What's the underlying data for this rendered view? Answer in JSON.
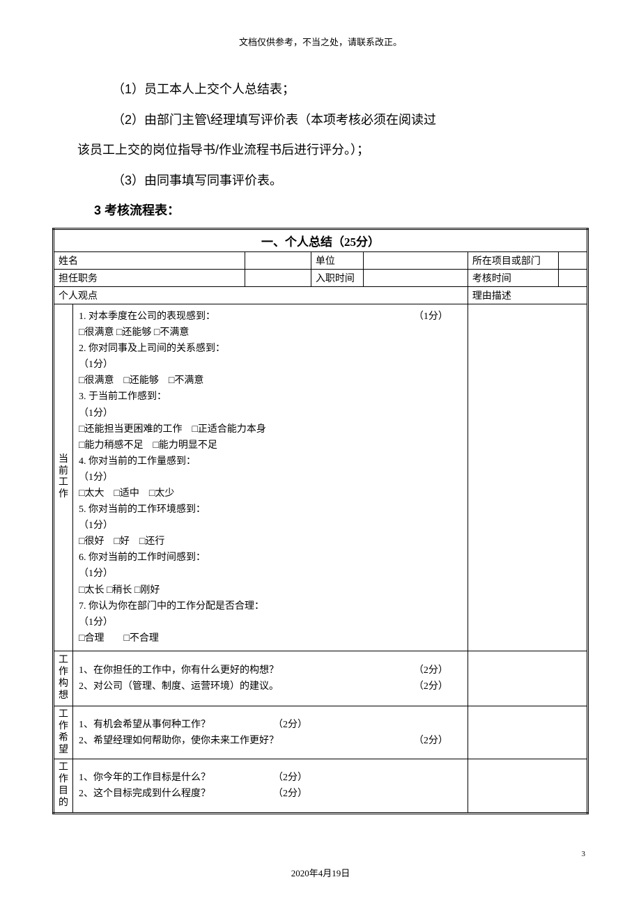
{
  "header_note": "文档仅供参考，不当之处，请联系改正。",
  "body": {
    "line1": "（1）员工本人上交个人总结表；",
    "line2": "（2）由部门主管\\经理填写评价表（本项考核必须在阅读过",
    "line2b": "该员工上交的岗位指导书/作业流程书后进行评分。）；",
    "line3": "（3）由同事填写同事评价表。",
    "section": "3 考核流程表："
  },
  "table": {
    "title": "一、个人总结（25分）",
    "info_row1": {
      "c1": "姓名",
      "c2": "",
      "c3": "单位",
      "c4": "",
      "c5": "所在项目或部门",
      "c6": ""
    },
    "info_row2": {
      "c1": "担任职务",
      "c2": "",
      "c3": "入职时间",
      "c4": "",
      "c5": "考核时间",
      "c6": ""
    },
    "info_row3": {
      "c1": "个人观点",
      "c2": "理由描述"
    },
    "section1": {
      "label": "当前工作",
      "q1": "1. 对本季度在公司的表现感到：",
      "q1pts": "（1分）",
      "q1opts": "□很满意 □还能够 □不满意",
      "q2": "2. 你对同事及上司间的关系感到：",
      "q2pts": "（1分）",
      "q2opts": "□很满意　□还能够　□不满意",
      "q3": "3. 于当前工作感到：",
      "q3pts": "（1分）",
      "q3opts1": "□还能担当更困难的工作　□正适合能力本身",
      "q3opts2": "□能力稍感不足　□能力明显不足",
      "q4": "4. 你对当前的工作量感到：",
      "q4pts": "（1分）",
      "q4opts": "□太大　□适中　□太少",
      "q5": "5. 你对当前的工作环境感到：",
      "q5pts": "（1分）",
      "q5opts": "□很好　□好　□还行",
      "q6": "6. 你对当前的工作时间感到：",
      "q6pts": "（1分）",
      "q6opts": "□太长 □稍长 □刚好",
      "q7": "7. 你认为你在部门中的工作分配是否合理：",
      "q7pts": "（1分）",
      "q7opts": "□合理　　□不合理"
    },
    "section2": {
      "label": "工作构想",
      "q1": "1、在你担任的工作中，你有什么更好的构想？",
      "q1pts": "（2分）",
      "q2": "2、对公司（管理、制度、运营环境）的建议。",
      "q2pts": "（2分）"
    },
    "section3": {
      "label": "工作希望",
      "q1": "1、有机会希望从事何种工作？",
      "q1pts": "（2分）",
      "q2": "2、希望经理如何帮助你，使你未来工作更好？",
      "q2pts": "（2分）"
    },
    "section4": {
      "label": "工作目的",
      "q1": "1、你今年的工作目标是什么？",
      "q1pts": "（2分）",
      "q2": "2、这个目标完成到什么程度？",
      "q2pts": "（2分）"
    }
  },
  "page_number": "3",
  "footer_date": "2020年4月19日"
}
